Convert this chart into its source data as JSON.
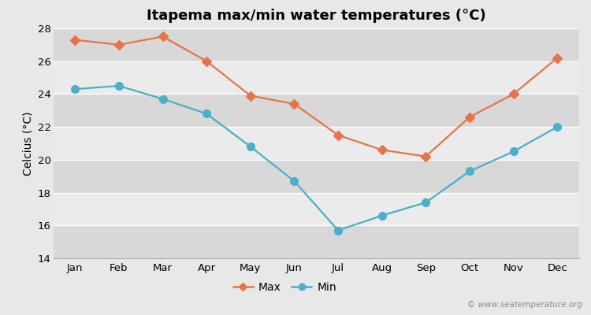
{
  "title": "Itapema max/min water temperatures (°C)",
  "ylabel": "Celcius (°C)",
  "months": [
    "Jan",
    "Feb",
    "Mar",
    "Apr",
    "May",
    "Jun",
    "Jul",
    "Aug",
    "Sep",
    "Oct",
    "Nov",
    "Dec"
  ],
  "max_temps": [
    27.3,
    27.0,
    27.5,
    26.0,
    23.9,
    23.4,
    21.5,
    20.6,
    20.2,
    22.6,
    24.0,
    26.2
  ],
  "min_temps": [
    24.3,
    24.5,
    23.7,
    22.8,
    20.8,
    18.7,
    15.7,
    16.6,
    17.4,
    19.3,
    20.5,
    22.0
  ],
  "max_color": "#e8724a",
  "min_color": "#4bafc9",
  "outer_bg": "#e8e8e8",
  "band_light": "#ebebeb",
  "band_dark": "#d8d8d8",
  "ylim": [
    14,
    28
  ],
  "yticks": [
    14,
    16,
    18,
    20,
    22,
    24,
    26,
    28
  ],
  "watermark": "© www.seatemperature.org",
  "title_fontsize": 13,
  "axis_label_fontsize": 10,
  "tick_fontsize": 9.5,
  "legend_fontsize": 10,
  "max_marker_size": 6,
  "min_marker_size": 7,
  "line_width": 1.6
}
